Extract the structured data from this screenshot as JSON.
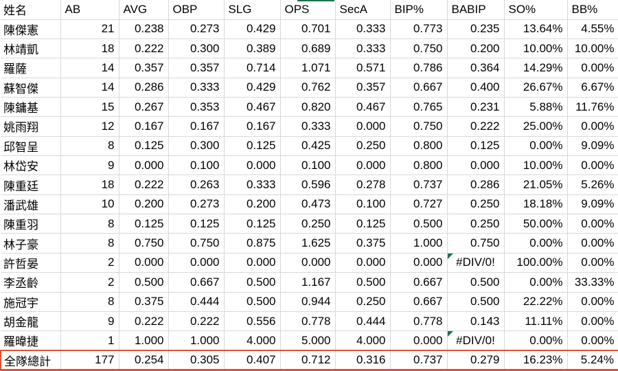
{
  "colors": {
    "gridline": "#d8d8d8",
    "total_row_border": "#e0523c",
    "error_flag_green": "#1e7145"
  },
  "table": {
    "columns": [
      {
        "key": "name",
        "label": "姓名"
      },
      {
        "key": "ab",
        "label": "AB"
      },
      {
        "key": "avg",
        "label": "AVG"
      },
      {
        "key": "obp",
        "label": "OBP"
      },
      {
        "key": "slg",
        "label": "SLG"
      },
      {
        "key": "ops",
        "label": "OPS"
      },
      {
        "key": "seca",
        "label": "SecA"
      },
      {
        "key": "bip_pct",
        "label": "BIP%"
      },
      {
        "key": "babip",
        "label": "BABIP"
      },
      {
        "key": "so_pct",
        "label": "SO%"
      },
      {
        "key": "bb_pct",
        "label": "BB%"
      }
    ],
    "rows": [
      {
        "name": "陳傑憲",
        "ab": "21",
        "avg": "0.238",
        "obp": "0.273",
        "slg": "0.429",
        "ops": "0.701",
        "seca": "0.333",
        "bip_pct": "0.773",
        "babip": "0.235",
        "so_pct": "13.64%",
        "bb_pct": "4.55%"
      },
      {
        "name": "林靖凱",
        "ab": "18",
        "avg": "0.222",
        "obp": "0.300",
        "slg": "0.389",
        "ops": "0.689",
        "seca": "0.333",
        "bip_pct": "0.750",
        "babip": "0.200",
        "so_pct": "10.00%",
        "bb_pct": "10.00%"
      },
      {
        "name": "羅薩",
        "ab": "14",
        "avg": "0.357",
        "obp": "0.357",
        "slg": "0.714",
        "ops": "1.071",
        "seca": "0.571",
        "bip_pct": "0.786",
        "babip": "0.364",
        "so_pct": "14.29%",
        "bb_pct": "0.00%"
      },
      {
        "name": "蘇智傑",
        "ab": "14",
        "avg": "0.286",
        "obp": "0.333",
        "slg": "0.429",
        "ops": "0.762",
        "seca": "0.357",
        "bip_pct": "0.667",
        "babip": "0.400",
        "so_pct": "26.67%",
        "bb_pct": "6.67%"
      },
      {
        "name": "陳鏞基",
        "ab": "15",
        "avg": "0.267",
        "obp": "0.353",
        "slg": "0.467",
        "ops": "0.820",
        "seca": "0.467",
        "bip_pct": "0.765",
        "babip": "0.231",
        "so_pct": "5.88%",
        "bb_pct": "11.76%"
      },
      {
        "name": "姚雨翔",
        "ab": "12",
        "avg": "0.167",
        "obp": "0.167",
        "slg": "0.167",
        "ops": "0.333",
        "seca": "0.000",
        "bip_pct": "0.750",
        "babip": "0.222",
        "so_pct": "25.00%",
        "bb_pct": "0.00%"
      },
      {
        "name": "邱智呈",
        "ab": "8",
        "avg": "0.125",
        "obp": "0.300",
        "slg": "0.125",
        "ops": "0.425",
        "seca": "0.250",
        "bip_pct": "0.800",
        "babip": "0.125",
        "so_pct": "0.00%",
        "bb_pct": "9.09%"
      },
      {
        "name": "林岱安",
        "ab": "9",
        "avg": "0.000",
        "obp": "0.100",
        "slg": "0.000",
        "ops": "0.100",
        "seca": "0.000",
        "bip_pct": "0.800",
        "babip": "0.000",
        "so_pct": "10.00%",
        "bb_pct": "0.00%"
      },
      {
        "name": "陳重廷",
        "ab": "18",
        "avg": "0.222",
        "obp": "0.263",
        "slg": "0.333",
        "ops": "0.596",
        "seca": "0.278",
        "bip_pct": "0.737",
        "babip": "0.286",
        "so_pct": "21.05%",
        "bb_pct": "5.26%"
      },
      {
        "name": "潘武雄",
        "ab": "10",
        "avg": "0.200",
        "obp": "0.273",
        "slg": "0.200",
        "ops": "0.473",
        "seca": "0.100",
        "bip_pct": "0.727",
        "babip": "0.250",
        "so_pct": "18.18%",
        "bb_pct": "9.09%"
      },
      {
        "name": "陳重羽",
        "ab": "8",
        "avg": "0.125",
        "obp": "0.125",
        "slg": "0.125",
        "ops": "0.250",
        "seca": "0.125",
        "bip_pct": "0.500",
        "babip": "0.250",
        "so_pct": "50.00%",
        "bb_pct": "0.00%"
      },
      {
        "name": "林子豪",
        "ab": "8",
        "avg": "0.750",
        "obp": "0.750",
        "slg": "0.875",
        "ops": "1.625",
        "seca": "0.375",
        "bip_pct": "1.000",
        "babip": "0.750",
        "so_pct": "0.00%",
        "bb_pct": "0.00%"
      },
      {
        "name": "許哲晏",
        "ab": "2",
        "avg": "0.000",
        "obp": "0.000",
        "slg": "0.000",
        "ops": "0.000",
        "seca": "0.000",
        "bip_pct": "0.000",
        "babip": "#DIV/0!",
        "babip_flag": true,
        "so_pct": "100.00%",
        "bb_pct": "0.00%"
      },
      {
        "name": "李丞齡",
        "ab": "2",
        "avg": "0.500",
        "obp": "0.667",
        "slg": "0.500",
        "ops": "1.167",
        "seca": "0.500",
        "bip_pct": "0.667",
        "babip": "0.500",
        "so_pct": "0.00%",
        "bb_pct": "33.33%"
      },
      {
        "name": "施冠宇",
        "ab": "8",
        "avg": "0.375",
        "obp": "0.444",
        "slg": "0.500",
        "ops": "0.944",
        "seca": "0.250",
        "bip_pct": "0.667",
        "babip": "0.500",
        "so_pct": "22.22%",
        "bb_pct": "0.00%"
      },
      {
        "name": "胡金龍",
        "ab": "9",
        "avg": "0.222",
        "obp": "0.222",
        "slg": "0.556",
        "ops": "0.778",
        "seca": "0.444",
        "bip_pct": "0.778",
        "babip": "0.143",
        "so_pct": "11.11%",
        "bb_pct": "0.00%"
      },
      {
        "name": "羅暐捷",
        "ab": "1",
        "avg": "1.000",
        "obp": "1.000",
        "slg": "4.000",
        "ops": "5.000",
        "seca": "4.000",
        "bip_pct": "0.000",
        "babip": "#DIV/0!",
        "babip_flag": true,
        "so_pct": "0.00%",
        "bb_pct": "0.00%"
      }
    ],
    "total_row": {
      "name": "全隊總計",
      "ab": "177",
      "avg": "0.254",
      "obp": "0.305",
      "slg": "0.407",
      "ops": "0.712",
      "seca": "0.316",
      "bip_pct": "0.737",
      "babip": "0.279",
      "so_pct": "16.23%",
      "bb_pct": "5.24%"
    }
  }
}
